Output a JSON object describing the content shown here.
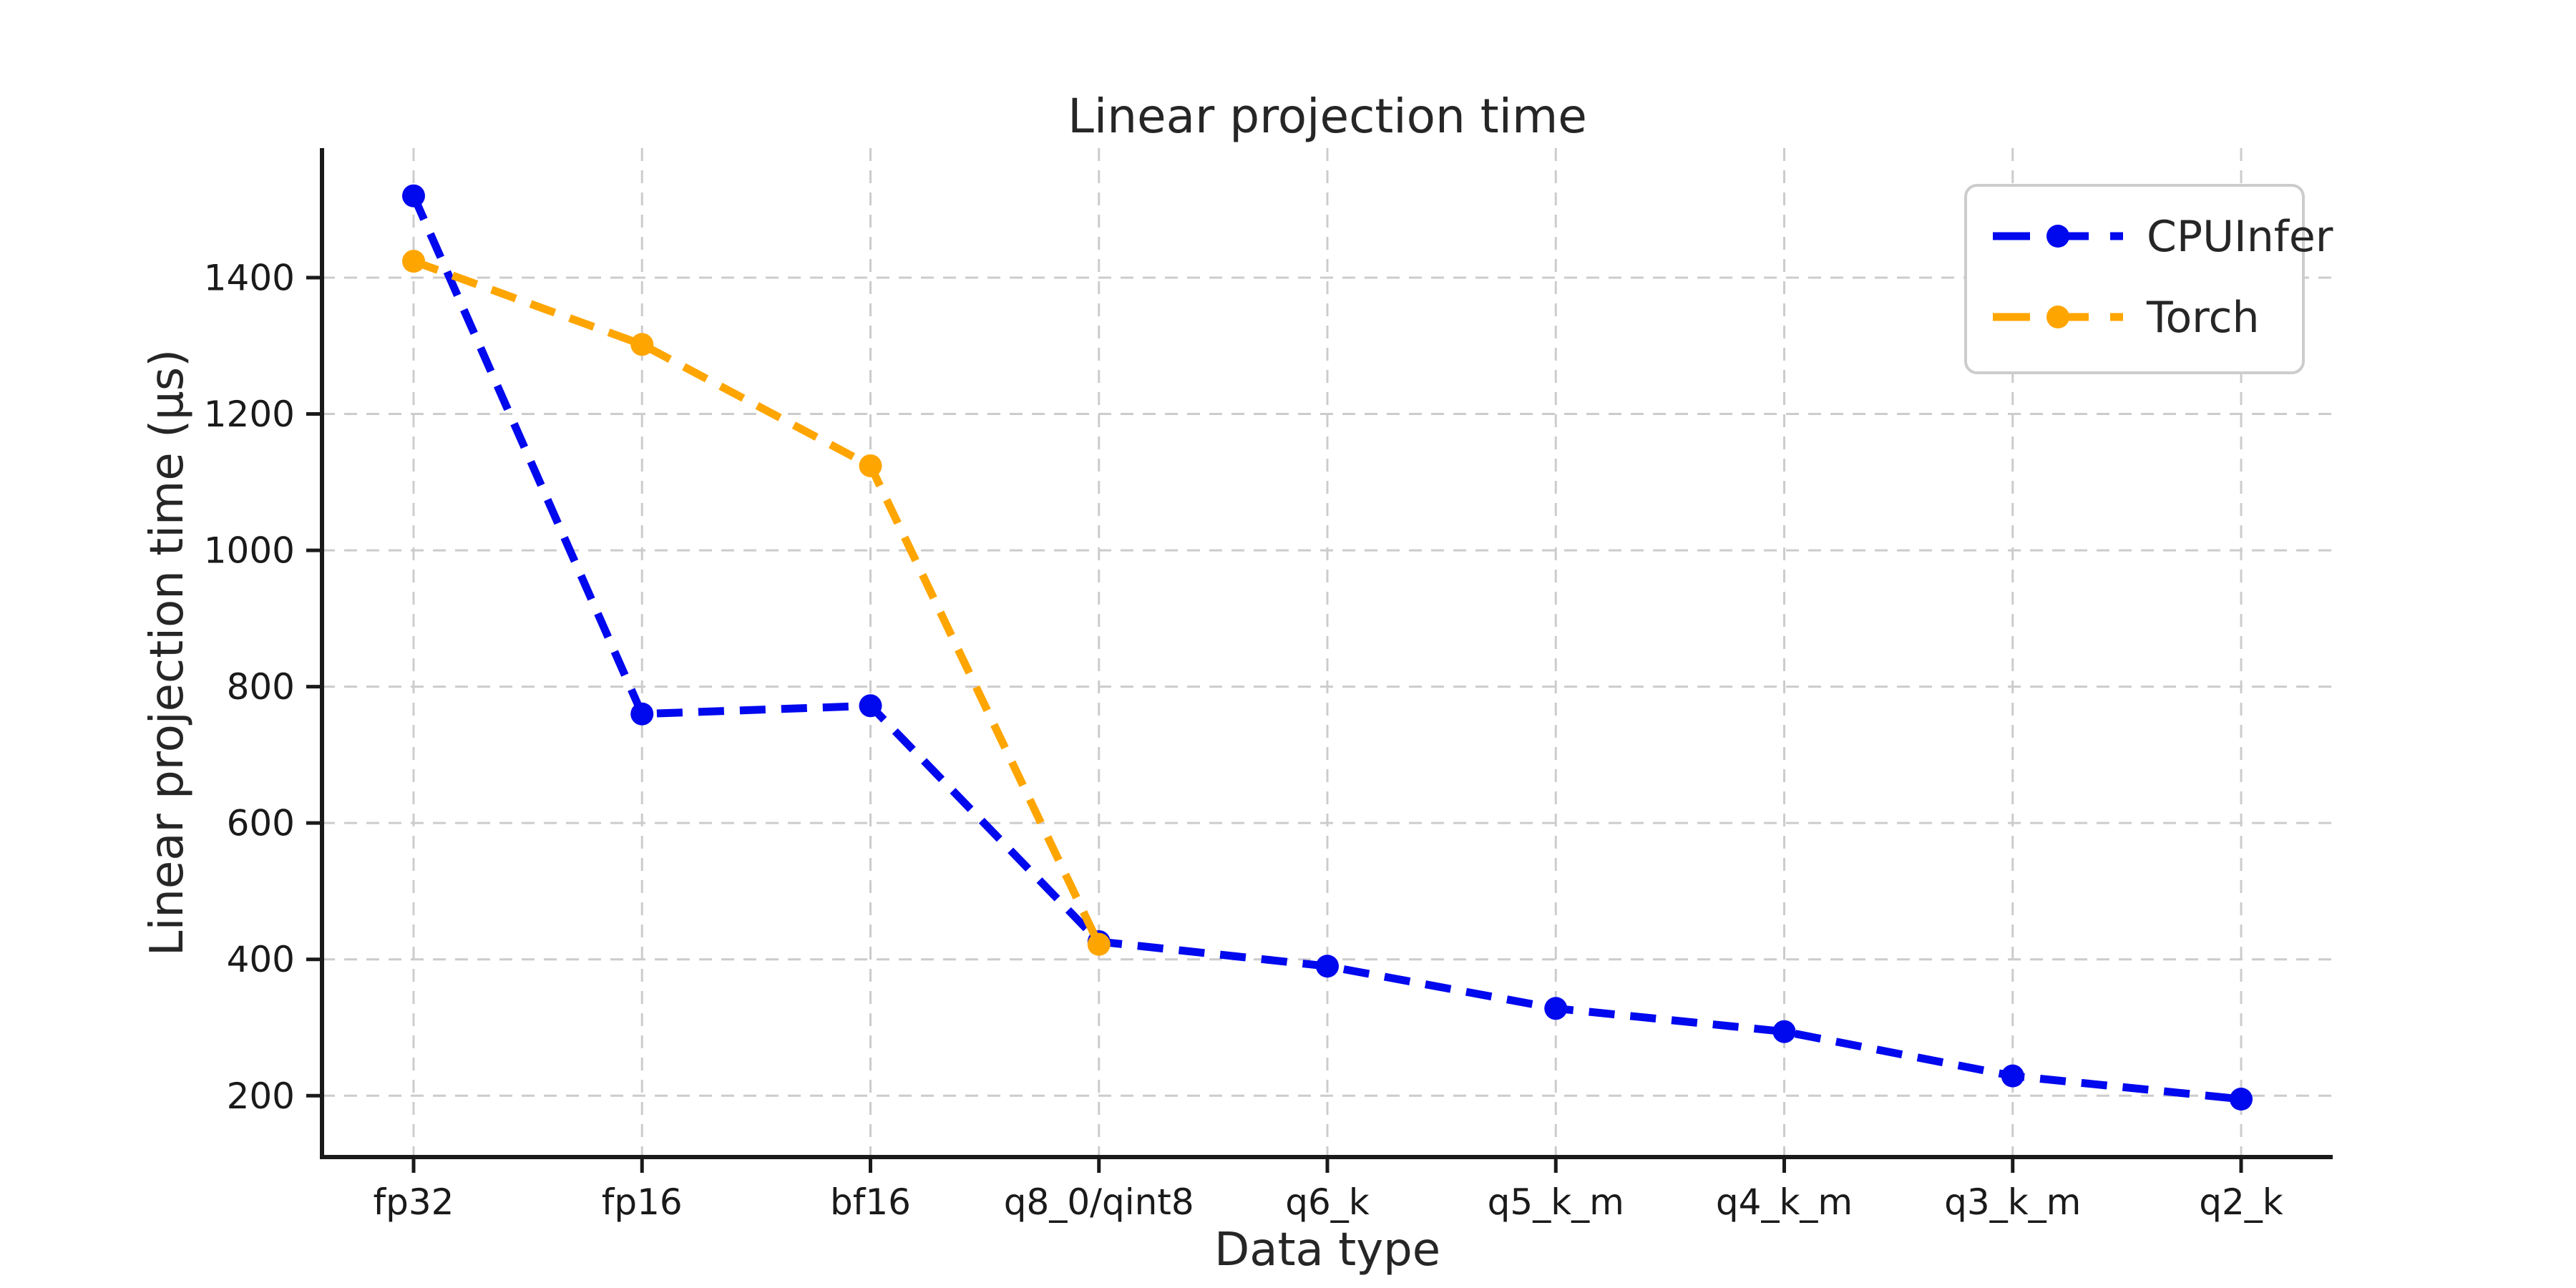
{
  "chart_data": {
    "type": "line",
    "title": "Linear projection time",
    "xlabel": "Data type",
    "ylabel": "Linear projection time (µs)",
    "categories": [
      "fp32",
      "fp16",
      "bf16",
      "q8_0/qint8",
      "q6_k",
      "q5_k_m",
      "q4_k_m",
      "q3_k_m",
      "q2_k"
    ],
    "series": [
      {
        "name": "CPUInfer",
        "color": "#0008ee",
        "values": [
          1520,
          760,
          772,
          426,
          390,
          328,
          294,
          229,
          195
        ]
      },
      {
        "name": "Torch",
        "color": "#ffa500",
        "values": [
          1424,
          1302,
          1124,
          422,
          null,
          null,
          null,
          null,
          null
        ]
      }
    ],
    "yticks": [
      200,
      400,
      600,
      800,
      1000,
      1200,
      1400
    ],
    "ylim": [
      110,
      1590
    ],
    "grid": true,
    "grid_style": "dashed",
    "line_style": "dashed",
    "marker": "circle",
    "legend_position": "upper right",
    "colors": {
      "grid": "#cccccc",
      "spine": "#1a1a1a",
      "background": "#ffffff",
      "legend_border": "#cccccc"
    }
  }
}
